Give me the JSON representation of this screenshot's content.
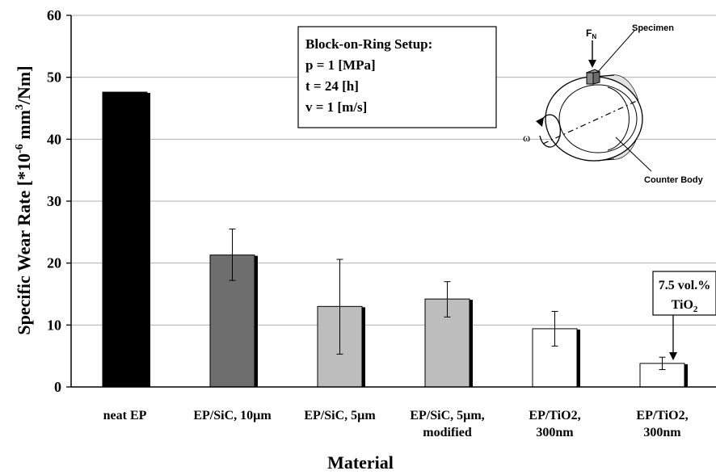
{
  "chart_data": {
    "type": "bar",
    "categories": [
      [
        "neat EP"
      ],
      [
        "EP/SiC, 10µm"
      ],
      [
        "EP/SiC, 5µm"
      ],
      [
        "EP/SiC, 5µm,",
        "modified"
      ],
      [
        "EP/TiO2,",
        "300nm"
      ],
      [
        "EP/TiO2,",
        "300nm"
      ]
    ],
    "values": [
      47.6,
      21.3,
      13.0,
      14.2,
      9.4,
      3.8
    ],
    "error_low": [
      47.6,
      17.2,
      5.3,
      11.3,
      6.6,
      2.8
    ],
    "error_high": [
      47.6,
      25.5,
      20.6,
      17.0,
      12.2,
      4.8
    ],
    "bar_colors": [
      "#000000",
      "#6e6e6e",
      "#bdbdbd",
      "#bdbdbd",
      "#ffffff",
      "#ffffff"
    ],
    "xlabel": "Material",
    "ylabel": "Specific Wear Rate [*10-6 mm3/Nm]",
    "ylim": [
      0,
      60
    ],
    "yticks": [
      0,
      10,
      20,
      30,
      40,
      50,
      60
    ],
    "grid": true,
    "annotations": {
      "setup_box": {
        "lines": [
          "Block-on-Ring Setup:",
          "p = 1    [MPa]",
          "t  = 24 [h]",
          "v = 1   [m/s]"
        ]
      },
      "callout": {
        "line1": "7.5 vol.%",
        "line2": "TiO2"
      },
      "schematic": {
        "force": "FN",
        "specimen": "Specimen",
        "omega": "ω",
        "counter_body": "Counter Body"
      }
    }
  }
}
